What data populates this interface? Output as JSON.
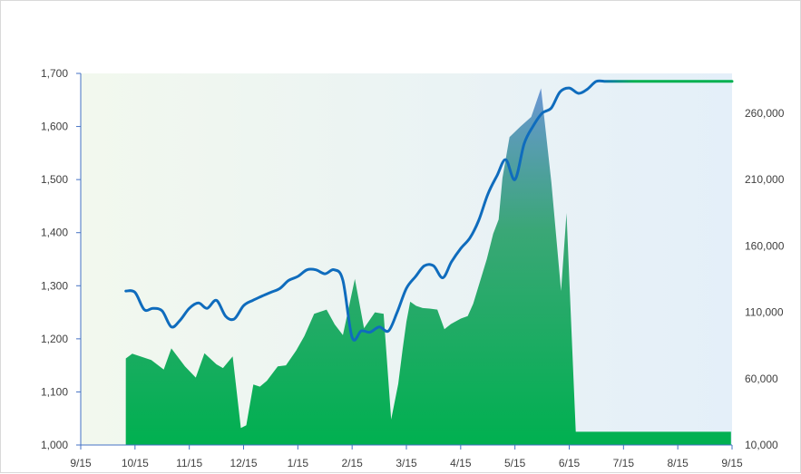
{
  "chart_data": {
    "type": "combo",
    "x_ticks": [
      "9/15",
      "10/15",
      "11/15",
      "12/15",
      "1/15",
      "2/15",
      "3/15",
      "4/15",
      "5/15",
      "6/15",
      "7/15",
      "8/15",
      "9/15"
    ],
    "y_left": {
      "min": 1000,
      "max": 1700,
      "ticks": [
        "1,000",
        "1,100",
        "1,200",
        "1,300",
        "1,400",
        "1,500",
        "1,600",
        "1,700"
      ],
      "tick_values": [
        1000,
        1100,
        1200,
        1300,
        1400,
        1500,
        1600,
        1700
      ]
    },
    "y_right": {
      "min": 10000,
      "max": 290000,
      "ticks": [
        "10,000",
        "60,000",
        "110,000",
        "160,000",
        "210,000",
        "260,000"
      ],
      "tick_values": [
        10000,
        60000,
        110000,
        160000,
        210000,
        260000
      ]
    },
    "area_series": {
      "axis": "left",
      "x": [
        0.83,
        0.95,
        1.3,
        1.53,
        1.67,
        1.92,
        2.12,
        2.28,
        2.5,
        2.62,
        2.8,
        2.95,
        3.05,
        3.18,
        3.3,
        3.43,
        3.63,
        3.78,
        3.97,
        4.12,
        4.3,
        4.53,
        4.68,
        4.83,
        5.05,
        5.22,
        5.42,
        5.58,
        5.72,
        5.85,
        5.93,
        6.0,
        6.07,
        6.18,
        6.3,
        6.43,
        6.57,
        6.7,
        6.82,
        7.0,
        7.13,
        7.23,
        7.48,
        7.6,
        7.7,
        7.77,
        7.9,
        8.1,
        8.3,
        8.48,
        8.67,
        8.85,
        8.95,
        9.12,
        9.28,
        9.37,
        9.42,
        9.5,
        9.7,
        9.92,
        10.1,
        10.28,
        10.42,
        10.55,
        10.68,
        10.83,
        10.92,
        11.05,
        11.2,
        11.32,
        11.47,
        11.6,
        11.68,
        11.82,
        11.98
      ],
      "values": [
        1163,
        1172,
        1160,
        1142,
        1182,
        1148,
        1127,
        1173,
        1152,
        1145,
        1167,
        1032,
        1037,
        1114,
        1110,
        1121,
        1148,
        1150,
        1178,
        1205,
        1247,
        1255,
        1227,
        1207,
        1313,
        1220,
        1250,
        1247,
        1048,
        1115,
        1180,
        1232,
        1270,
        1262,
        1258,
        1257,
        1255,
        1218,
        1228,
        1238,
        1243,
        1266,
        1350,
        1398,
        1425,
        1503,
        1580,
        1600,
        1618,
        1672,
        1495,
        1290,
        1437,
        1025,
        1025,
        1025,
        1025,
        1025,
        1025,
        1025,
        1025,
        1025,
        1025,
        1025,
        1025,
        1025,
        1025,
        1025,
        1025,
        1025,
        1025,
        1025,
        1025,
        1025,
        1025
      ]
    },
    "line_series": {
      "axis": "right",
      "x": [
        0.83,
        1.0,
        1.17,
        1.33,
        1.5,
        1.67,
        1.83,
        2.0,
        2.17,
        2.33,
        2.5,
        2.67,
        2.83,
        3.0,
        3.17,
        3.33,
        3.5,
        3.67,
        3.83,
        4.0,
        4.17,
        4.33,
        4.5,
        4.67,
        4.83,
        5.0,
        5.17,
        5.33,
        5.5,
        5.67,
        5.83,
        6.0,
        6.17,
        6.33,
        6.5,
        6.67,
        6.83,
        7.0,
        7.17,
        7.33,
        7.5,
        7.67,
        7.83,
        8.0,
        8.17,
        8.33,
        8.5,
        8.67,
        8.83,
        9.0,
        9.17,
        9.33,
        9.5,
        9.67,
        9.83,
        10.0,
        10.17,
        10.33,
        10.5,
        10.67,
        10.83,
        11.0,
        11.17,
        11.33,
        11.5,
        11.67,
        11.83,
        12.0
      ],
      "values": [
        126000,
        125000,
        112000,
        113000,
        111000,
        99000,
        104000,
        113000,
        117000,
        113000,
        119000,
        107000,
        105000,
        115000,
        119000,
        122000,
        125000,
        128000,
        134000,
        137000,
        142000,
        142000,
        139000,
        142000,
        134000,
        91000,
        96000,
        95000,
        99000,
        96000,
        110000,
        128000,
        137000,
        145000,
        145000,
        136000,
        148000,
        158000,
        166000,
        179000,
        199000,
        213000,
        225000,
        210000,
        237000,
        250000,
        260000,
        264000,
        276000,
        279000,
        275000,
        278000,
        284000,
        284000,
        284000,
        284000,
        284000,
        284000,
        284000,
        284000,
        284000,
        284000,
        284000,
        284000,
        284000,
        284000,
        284000,
        284000
      ]
    },
    "area_colors": {
      "top": "#6a96d4",
      "mid": "#3aa776",
      "bottom": "#00b050"
    },
    "line_color_start": "#0f6cbd",
    "line_color_end": "#00b050",
    "plot_background_start": "#f2f8ee",
    "plot_background_end": "#e4eff9",
    "axis_color": "#4472c4"
  }
}
